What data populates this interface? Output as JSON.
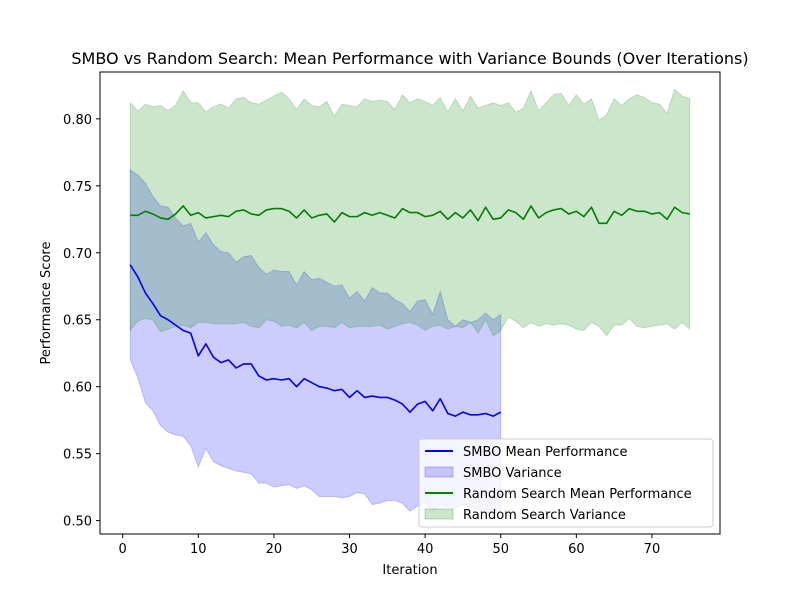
{
  "chart_data": {
    "type": "line",
    "title": "SMBO vs Random Search: Mean Performance with Variance Bounds (Over Iterations)",
    "xlabel": "Iteration",
    "ylabel": "Performance Score",
    "xlim": [
      -3,
      79
    ],
    "ylim": [
      0.49,
      0.835
    ],
    "xticks": [
      0,
      10,
      20,
      30,
      40,
      50,
      60,
      70
    ],
    "xtick_labels": [
      "0",
      "10",
      "20",
      "30",
      "40",
      "50",
      "60",
      "70"
    ],
    "yticks": [
      0.5,
      0.55,
      0.6,
      0.65,
      0.7,
      0.75,
      0.8
    ],
    "ytick_labels": [
      "0.50",
      "0.55",
      "0.60",
      "0.65",
      "0.70",
      "0.75",
      "0.80"
    ],
    "grid": false,
    "legend_position": "lower-right",
    "series": [
      {
        "name": "SMBO Mean Performance",
        "kind": "line",
        "color": "#0000ff",
        "x": [
          1,
          2,
          3,
          4,
          5,
          6,
          7,
          8,
          9,
          10,
          11,
          12,
          13,
          14,
          15,
          16,
          17,
          18,
          19,
          20,
          21,
          22,
          23,
          24,
          25,
          26,
          27,
          28,
          29,
          30,
          31,
          32,
          33,
          34,
          35,
          36,
          37,
          38,
          39,
          40,
          41,
          42,
          43,
          44,
          45,
          46,
          47,
          48,
          49,
          50
        ],
        "y": [
          0.691,
          0.682,
          0.67,
          0.662,
          0.653,
          0.65,
          0.646,
          0.642,
          0.64,
          0.623,
          0.632,
          0.622,
          0.618,
          0.62,
          0.614,
          0.617,
          0.617,
          0.608,
          0.605,
          0.606,
          0.605,
          0.606,
          0.6,
          0.606,
          0.603,
          0.6,
          0.599,
          0.597,
          0.598,
          0.592,
          0.597,
          0.592,
          0.593,
          0.592,
          0.592,
          0.59,
          0.587,
          0.581,
          0.587,
          0.589,
          0.582,
          0.591,
          0.58,
          0.578,
          0.581,
          0.579,
          0.579,
          0.58,
          0.578,
          0.581
        ]
      },
      {
        "name": "SMBO Variance",
        "kind": "band",
        "color": "#0000ff",
        "x": [
          1,
          2,
          3,
          4,
          5,
          6,
          7,
          8,
          9,
          10,
          11,
          12,
          13,
          14,
          15,
          16,
          17,
          18,
          19,
          20,
          21,
          22,
          23,
          24,
          25,
          26,
          27,
          28,
          29,
          30,
          31,
          32,
          33,
          34,
          35,
          36,
          37,
          38,
          39,
          40,
          41,
          42,
          43,
          44,
          45,
          46,
          47,
          48,
          49,
          50
        ],
        "upper": [
          0.762,
          0.758,
          0.752,
          0.742,
          0.735,
          0.734,
          0.726,
          0.72,
          0.722,
          0.708,
          0.715,
          0.706,
          0.701,
          0.7,
          0.693,
          0.697,
          0.698,
          0.689,
          0.684,
          0.687,
          0.686,
          0.686,
          0.676,
          0.686,
          0.68,
          0.681,
          0.678,
          0.675,
          0.676,
          0.666,
          0.671,
          0.664,
          0.674,
          0.67,
          0.67,
          0.665,
          0.662,
          0.656,
          0.664,
          0.665,
          0.654,
          0.671,
          0.65,
          0.645,
          0.65,
          0.648,
          0.65,
          0.655,
          0.65,
          0.654
        ],
        "lower": [
          0.62,
          0.607,
          0.588,
          0.582,
          0.571,
          0.566,
          0.564,
          0.563,
          0.556,
          0.54,
          0.554,
          0.544,
          0.541,
          0.539,
          0.537,
          0.536,
          0.535,
          0.528,
          0.528,
          0.525,
          0.526,
          0.527,
          0.524,
          0.526,
          0.523,
          0.518,
          0.518,
          0.518,
          0.517,
          0.518,
          0.521,
          0.52,
          0.512,
          0.513,
          0.515,
          0.515,
          0.513,
          0.507,
          0.511,
          0.513,
          0.507,
          0.512,
          0.51,
          0.509,
          0.512,
          0.51,
          0.508,
          0.505,
          0.505,
          0.508
        ]
      },
      {
        "name": "Random Search Mean Performance",
        "kind": "line",
        "color": "#008000",
        "x": [
          1,
          2,
          3,
          4,
          5,
          6,
          7,
          8,
          9,
          10,
          11,
          12,
          13,
          14,
          15,
          16,
          17,
          18,
          19,
          20,
          21,
          22,
          23,
          24,
          25,
          26,
          27,
          28,
          29,
          30,
          31,
          32,
          33,
          34,
          35,
          36,
          37,
          38,
          39,
          40,
          41,
          42,
          43,
          44,
          45,
          46,
          47,
          48,
          49,
          50,
          51,
          52,
          53,
          54,
          55,
          56,
          57,
          58,
          59,
          60,
          61,
          62,
          63,
          64,
          65,
          66,
          67,
          68,
          69,
          70,
          71,
          72,
          73,
          74,
          75
        ],
        "y": [
          0.728,
          0.728,
          0.731,
          0.729,
          0.726,
          0.725,
          0.729,
          0.735,
          0.728,
          0.73,
          0.726,
          0.727,
          0.728,
          0.727,
          0.731,
          0.732,
          0.729,
          0.728,
          0.732,
          0.733,
          0.733,
          0.731,
          0.726,
          0.732,
          0.726,
          0.728,
          0.729,
          0.723,
          0.73,
          0.727,
          0.727,
          0.73,
          0.728,
          0.73,
          0.728,
          0.726,
          0.733,
          0.73,
          0.73,
          0.727,
          0.728,
          0.731,
          0.725,
          0.73,
          0.726,
          0.732,
          0.724,
          0.734,
          0.725,
          0.726,
          0.732,
          0.73,
          0.725,
          0.735,
          0.726,
          0.73,
          0.732,
          0.733,
          0.729,
          0.731,
          0.727,
          0.734,
          0.722,
          0.722,
          0.731,
          0.728,
          0.733,
          0.731,
          0.731,
          0.729,
          0.73,
          0.725,
          0.734,
          0.73,
          0.729
        ]
      },
      {
        "name": "Random Search Variance",
        "kind": "band",
        "color": "#008000",
        "x": [
          1,
          2,
          3,
          4,
          5,
          6,
          7,
          8,
          9,
          10,
          11,
          12,
          13,
          14,
          15,
          16,
          17,
          18,
          19,
          20,
          21,
          22,
          23,
          24,
          25,
          26,
          27,
          28,
          29,
          30,
          31,
          32,
          33,
          34,
          35,
          36,
          37,
          38,
          39,
          40,
          41,
          42,
          43,
          44,
          45,
          46,
          47,
          48,
          49,
          50,
          51,
          52,
          53,
          54,
          55,
          56,
          57,
          58,
          59,
          60,
          61,
          62,
          63,
          64,
          65,
          66,
          67,
          68,
          69,
          70,
          71,
          72,
          73,
          74,
          75
        ],
        "upper": [
          0.812,
          0.806,
          0.811,
          0.809,
          0.81,
          0.806,
          0.81,
          0.821,
          0.812,
          0.812,
          0.805,
          0.809,
          0.811,
          0.808,
          0.815,
          0.816,
          0.812,
          0.811,
          0.814,
          0.817,
          0.82,
          0.815,
          0.807,
          0.815,
          0.81,
          0.809,
          0.813,
          0.802,
          0.811,
          0.81,
          0.809,
          0.815,
          0.813,
          0.814,
          0.813,
          0.807,
          0.818,
          0.812,
          0.815,
          0.813,
          0.81,
          0.816,
          0.805,
          0.815,
          0.806,
          0.817,
          0.808,
          0.81,
          0.812,
          0.81,
          0.812,
          0.805,
          0.808,
          0.821,
          0.806,
          0.812,
          0.818,
          0.819,
          0.81,
          0.818,
          0.811,
          0.815,
          0.799,
          0.803,
          0.815,
          0.81,
          0.815,
          0.818,
          0.816,
          0.812,
          0.811,
          0.804,
          0.822,
          0.817,
          0.815
        ],
        "lower": [
          0.642,
          0.649,
          0.651,
          0.65,
          0.641,
          0.643,
          0.645,
          0.646,
          0.644,
          0.648,
          0.648,
          0.647,
          0.647,
          0.647,
          0.647,
          0.648,
          0.645,
          0.644,
          0.65,
          0.649,
          0.645,
          0.646,
          0.644,
          0.648,
          0.642,
          0.645,
          0.645,
          0.644,
          0.648,
          0.644,
          0.645,
          0.645,
          0.645,
          0.646,
          0.643,
          0.645,
          0.647,
          0.648,
          0.646,
          0.642,
          0.645,
          0.646,
          0.643,
          0.645,
          0.644,
          0.648,
          0.64,
          0.65,
          0.638,
          0.642,
          0.652,
          0.649,
          0.644,
          0.648,
          0.645,
          0.647,
          0.646,
          0.647,
          0.646,
          0.643,
          0.642,
          0.648,
          0.645,
          0.638,
          0.646,
          0.646,
          0.651,
          0.645,
          0.644,
          0.645,
          0.646,
          0.647,
          0.643,
          0.648,
          0.643
        ]
      }
    ]
  }
}
